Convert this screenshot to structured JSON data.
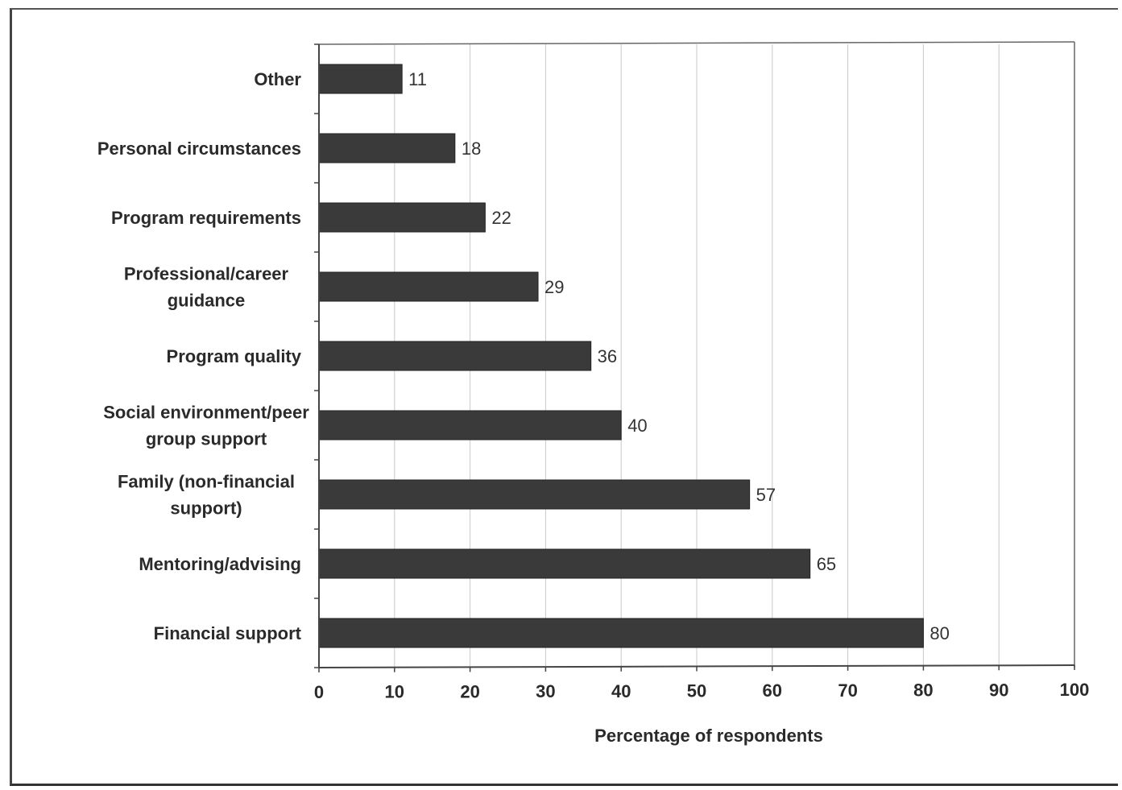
{
  "chart_data": {
    "type": "bar",
    "orientation": "horizontal",
    "categories": [
      "Other",
      "Personal circumstances",
      "Program requirements",
      "Professional/career guidance",
      "Program quality",
      "Social environment/peer group support",
      "Family (non-financial support)",
      "Mentoring/advising",
      "Financial support"
    ],
    "category_label_lines": [
      [
        "Other"
      ],
      [
        "Personal circumstances"
      ],
      [
        "Program requirements"
      ],
      [
        "Professional/career",
        "guidance"
      ],
      [
        "Program quality"
      ],
      [
        "Social environment/peer",
        "group support"
      ],
      [
        "Family (non-financial",
        "support)"
      ],
      [
        "Mentoring/advising"
      ],
      [
        "Financial support"
      ]
    ],
    "values": [
      11,
      18,
      22,
      29,
      36,
      40,
      57,
      65,
      80
    ],
    "value_labels": [
      "11",
      "18",
      "22",
      "29",
      "36",
      "40",
      "57",
      "65",
      "80"
    ],
    "xlabel": "Percentage of respondents",
    "xlim": [
      0,
      100
    ],
    "xticks": [
      0,
      10,
      20,
      30,
      40,
      50,
      60,
      70,
      80,
      90,
      100
    ],
    "xtick_labels": [
      "0",
      "10",
      "20",
      "30",
      "40",
      "50",
      "60",
      "70",
      "80",
      "90",
      "100"
    ],
    "grid": "vertical",
    "legend": "none",
    "colors": {
      "bar": "#3a3a3a",
      "grid": "#c8c8c8",
      "axis": "#444444"
    }
  }
}
